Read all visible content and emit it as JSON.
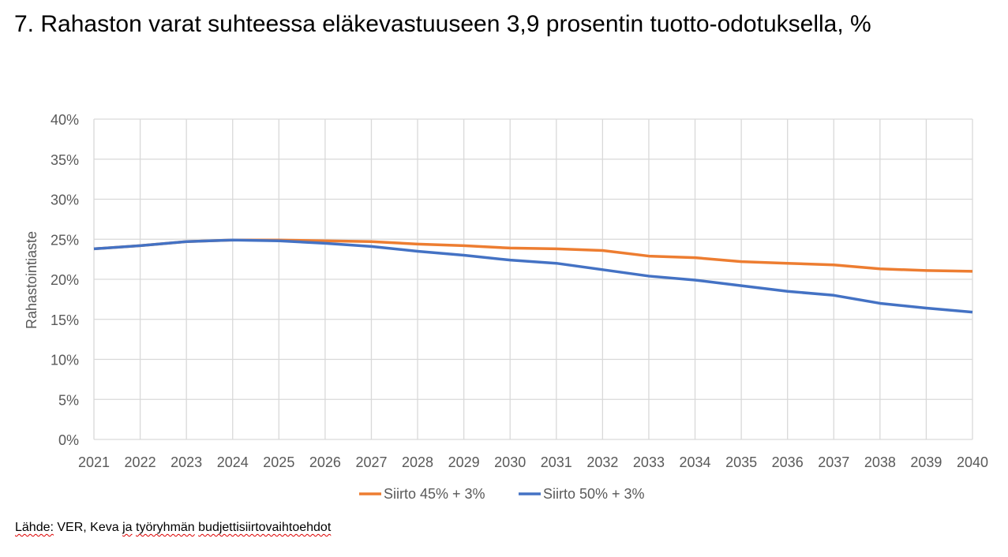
{
  "title": "7. Rahaston varat suhteessa eläkevastuuseen 3,9 prosentin tuotto-odotuksella, %",
  "source": {
    "prefix": "Lähde:",
    "mid1": " VER, Keva ",
    "ja": "ja",
    "space": " ",
    "tyoryhman": "työryhmän",
    "space2": " ",
    "budjetti": "budjettisiirtovaihtoehdot"
  },
  "chart_data": {
    "type": "line",
    "title": "",
    "xlabel": "",
    "ylabel": "Rahastointiaste",
    "ylim": [
      0,
      40
    ],
    "yticks": [
      "0%",
      "5%",
      "10%",
      "15%",
      "20%",
      "25%",
      "30%",
      "35%",
      "40%"
    ],
    "grid": true,
    "legend_position": "bottom",
    "x": [
      "2021",
      "2022",
      "2023",
      "2024",
      "2025",
      "2026",
      "2027",
      "2028",
      "2029",
      "2030",
      "2031",
      "2032",
      "2033",
      "2034",
      "2035",
      "2036",
      "2037",
      "2038",
      "2039",
      "2040"
    ],
    "series": [
      {
        "name": "Siirto 45% + 3%",
        "color": "#ED7D31",
        "values": [
          23.8,
          24.2,
          24.7,
          24.9,
          24.9,
          24.8,
          24.7,
          24.4,
          24.2,
          23.9,
          23.8,
          23.6,
          22.9,
          22.7,
          22.2,
          22.0,
          21.8,
          21.3,
          21.1,
          21.0
        ]
      },
      {
        "name": "Siirto 50% + 3%",
        "color": "#4472C4",
        "values": [
          23.8,
          24.2,
          24.7,
          24.9,
          24.8,
          24.5,
          24.1,
          23.5,
          23.0,
          22.4,
          22.0,
          21.2,
          20.4,
          19.9,
          19.2,
          18.5,
          18.0,
          17.0,
          16.4,
          15.9
        ]
      }
    ]
  }
}
